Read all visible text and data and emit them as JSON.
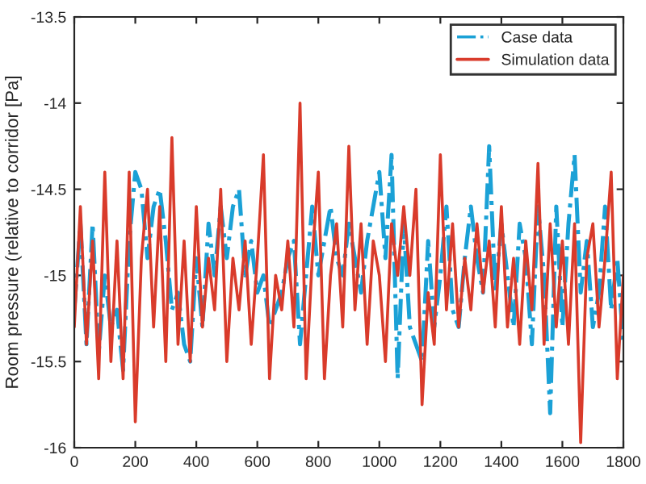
{
  "chart_data": {
    "type": "line",
    "ylabel": "Room pressure (relative to corridor [Pa]",
    "xlim": [
      0,
      1800
    ],
    "xticks": [
      0,
      200,
      400,
      600,
      800,
      1000,
      1200,
      1400,
      1600,
      1800
    ],
    "ylim": [
      -16,
      -13.5
    ],
    "yticks": [
      -16,
      -15.5,
      -15,
      -14.5,
      -14,
      -13.5
    ],
    "grid": false,
    "legend": "top right",
    "marker": "none",
    "x": [
      0,
      20,
      40,
      60,
      80,
      100,
      120,
      140,
      160,
      180,
      200,
      220,
      240,
      260,
      280,
      300,
      320,
      340,
      360,
      380,
      400,
      420,
      440,
      460,
      480,
      500,
      520,
      540,
      560,
      580,
      600,
      620,
      640,
      660,
      680,
      700,
      720,
      740,
      760,
      780,
      800,
      820,
      840,
      860,
      880,
      900,
      920,
      940,
      960,
      980,
      1000,
      1020,
      1040,
      1060,
      1080,
      1100,
      1120,
      1140,
      1160,
      1180,
      1200,
      1220,
      1240,
      1260,
      1280,
      1300,
      1320,
      1340,
      1360,
      1380,
      1400,
      1420,
      1440,
      1460,
      1480,
      1500,
      1520,
      1540,
      1560,
      1580,
      1600,
      1620,
      1640,
      1660,
      1680,
      1700,
      1720,
      1740,
      1760,
      1780,
      1800
    ],
    "series": [
      {
        "name": "Case data",
        "color": "#1ba1d6",
        "line_style": "dashed",
        "values": [
          -15.2,
          -14.7,
          -15.4,
          -14.7,
          -15.45,
          -15.0,
          -15.3,
          -15.2,
          -15.55,
          -14.8,
          -14.4,
          -14.5,
          -14.9,
          -14.6,
          -14.5,
          -14.8,
          -15.2,
          -15.1,
          -15.4,
          -15.5,
          -14.9,
          -15.3,
          -14.7,
          -15.0,
          -14.6,
          -14.9,
          -14.6,
          -14.5,
          -15.0,
          -14.8,
          -15.1,
          -15.0,
          -15.3,
          -15.2,
          -15.1,
          -14.9,
          -14.8,
          -15.4,
          -15.0,
          -14.6,
          -15.0,
          -14.8,
          -14.6,
          -14.9,
          -15.0,
          -14.7,
          -14.9,
          -15.1,
          -14.8,
          -14.6,
          -14.4,
          -14.9,
          -14.3,
          -15.6,
          -14.7,
          -15.3,
          -15.4,
          -15.5,
          -14.8,
          -15.3,
          -15.0,
          -14.6,
          -15.2,
          -15.3,
          -14.9,
          -14.6,
          -14.9,
          -15.1,
          -14.25,
          -15.1,
          -14.7,
          -15.0,
          -15.3,
          -14.7,
          -14.9,
          -15.4,
          -14.6,
          -15.0,
          -15.8,
          -14.6,
          -15.3,
          -14.7,
          -14.3,
          -15.1,
          -14.8,
          -15.3,
          -15.1,
          -14.6,
          -15.2,
          -14.9,
          -15.4
        ]
      },
      {
        "name": "Simulation data",
        "color": "#d93b2b",
        "line_style": "solid",
        "values": [
          -15.3,
          -14.6,
          -15.4,
          -14.8,
          -15.6,
          -14.4,
          -15.5,
          -14.8,
          -15.6,
          -14.4,
          -15.85,
          -14.9,
          -14.5,
          -15.3,
          -14.6,
          -15.5,
          -14.2,
          -15.4,
          -14.8,
          -15.5,
          -14.6,
          -15.3,
          -14.9,
          -15.2,
          -14.5,
          -15.5,
          -14.9,
          -15.2,
          -14.8,
          -15.4,
          -14.9,
          -14.3,
          -15.6,
          -15.0,
          -15.2,
          -14.8,
          -15.3,
          -14.0,
          -15.6,
          -14.9,
          -14.4,
          -15.6,
          -15.0,
          -14.7,
          -15.3,
          -14.25,
          -15.2,
          -14.7,
          -15.4,
          -14.8,
          -15.0,
          -15.5,
          -14.7,
          -15.0,
          -14.6,
          -15.0,
          -14.5,
          -15.75,
          -15.1,
          -15.4,
          -14.3,
          -15.2,
          -14.7,
          -15.3,
          -14.9,
          -15.2,
          -14.7,
          -15.1,
          -14.8,
          -15.3,
          -14.6,
          -15.3,
          -14.9,
          -15.4,
          -14.8,
          -15.2,
          -14.35,
          -15.4,
          -14.7,
          -15.3,
          -14.8,
          -15.4,
          -14.7,
          -15.97,
          -14.9,
          -14.7,
          -15.3,
          -14.9,
          -14.4,
          -15.6,
          -15.0
        ]
      }
    ]
  }
}
